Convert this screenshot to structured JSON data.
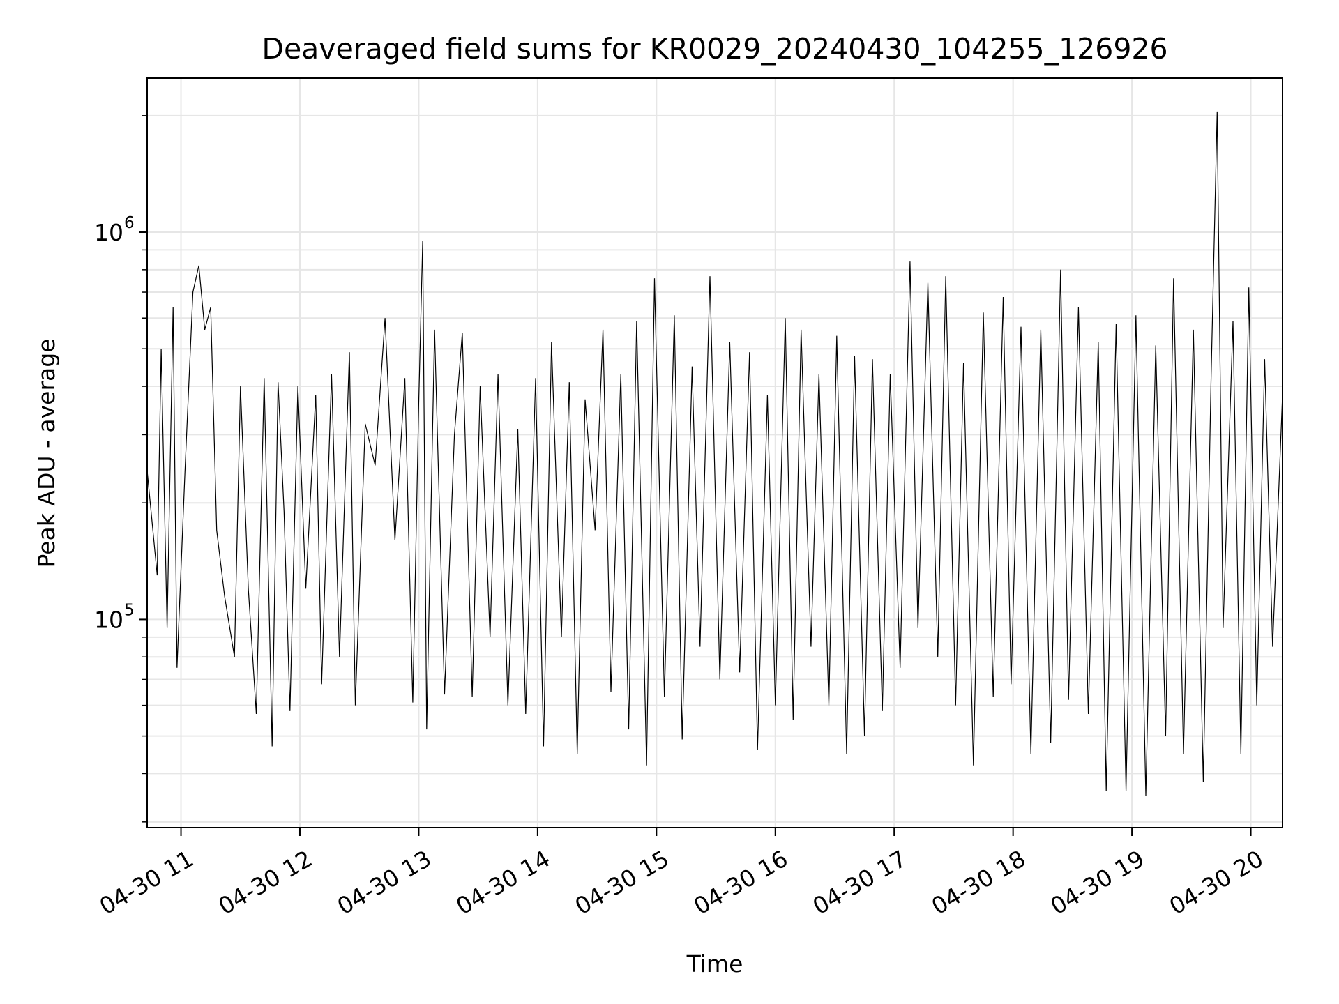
{
  "chart_data": {
    "type": "line",
    "title": "Deaveraged field sums for KR0029_20240430_104255_126926",
    "xlabel": "Time",
    "ylabel": "Peak ADU - average",
    "xlim": [
      "2024-04-30T10:42:55",
      "2024-04-30T20:16:00"
    ],
    "ylim": [
      29000,
      2500000
    ],
    "yscale": "log",
    "grid": true,
    "x_ticks": [
      {
        "t": "2024-04-30T11:00",
        "label": "04-30 11"
      },
      {
        "t": "2024-04-30T12:00",
        "label": "04-30 12"
      },
      {
        "t": "2024-04-30T13:00",
        "label": "04-30 13"
      },
      {
        "t": "2024-04-30T14:00",
        "label": "04-30 14"
      },
      {
        "t": "2024-04-30T15:00",
        "label": "04-30 15"
      },
      {
        "t": "2024-04-30T16:00",
        "label": "04-30 16"
      },
      {
        "t": "2024-04-30T17:00",
        "label": "04-30 17"
      },
      {
        "t": "2024-04-30T18:00",
        "label": "04-30 18"
      },
      {
        "t": "2024-04-30T19:00",
        "label": "04-30 19"
      },
      {
        "t": "2024-04-30T20:00",
        "label": "04-30 20"
      }
    ],
    "y_major_ticks": [
      {
        "value": 100000,
        "base": "10",
        "exp": "5"
      },
      {
        "value": 1000000,
        "base": "10",
        "exp": "6"
      }
    ],
    "y_minor_ticks": [
      30000,
      40000,
      50000,
      60000,
      70000,
      80000,
      90000,
      200000,
      300000,
      400000,
      500000,
      600000,
      700000,
      800000,
      900000,
      2000000
    ],
    "series": [
      {
        "color": "#000000",
        "points": [
          [
            "2024-04-30T10:43",
            240000
          ],
          [
            "2024-04-30T10:48",
            130000
          ],
          [
            "2024-04-30T10:50",
            500000
          ],
          [
            "2024-04-30T10:53",
            95000
          ],
          [
            "2024-04-30T10:56",
            640000
          ],
          [
            "2024-04-30T10:58",
            75000
          ],
          [
            "2024-04-30T11:02",
            240000
          ],
          [
            "2024-04-30T11:06",
            700000
          ],
          [
            "2024-04-30T11:09",
            820000
          ],
          [
            "2024-04-30T11:12",
            560000
          ],
          [
            "2024-04-30T11:15",
            640000
          ],
          [
            "2024-04-30T11:18",
            170000
          ],
          [
            "2024-04-30T11:22",
            115000
          ],
          [
            "2024-04-30T11:27",
            80000
          ],
          [
            "2024-04-30T11:30",
            400000
          ],
          [
            "2024-04-30T11:34",
            120000
          ],
          [
            "2024-04-30T11:38",
            57000
          ],
          [
            "2024-04-30T11:42",
            420000
          ],
          [
            "2024-04-30T11:46",
            47000
          ],
          [
            "2024-04-30T11:49",
            410000
          ],
          [
            "2024-04-30T11:52",
            190000
          ],
          [
            "2024-04-30T11:55",
            58000
          ],
          [
            "2024-04-30T11:59",
            400000
          ],
          [
            "2024-04-30T12:03",
            120000
          ],
          [
            "2024-04-30T12:08",
            380000
          ],
          [
            "2024-04-30T12:11",
            68000
          ],
          [
            "2024-04-30T12:16",
            430000
          ],
          [
            "2024-04-30T12:20",
            80000
          ],
          [
            "2024-04-30T12:25",
            490000
          ],
          [
            "2024-04-30T12:28",
            60000
          ],
          [
            "2024-04-30T12:33",
            320000
          ],
          [
            "2024-04-30T12:38",
            250000
          ],
          [
            "2024-04-30T12:43",
            600000
          ],
          [
            "2024-04-30T12:48",
            160000
          ],
          [
            "2024-04-30T12:53",
            420000
          ],
          [
            "2024-04-30T12:57",
            61000
          ],
          [
            "2024-04-30T13:00",
            360000
          ],
          [
            "2024-04-30T13:02",
            950000
          ],
          [
            "2024-04-30T13:04",
            52000
          ],
          [
            "2024-04-30T13:08",
            560000
          ],
          [
            "2024-04-30T13:13",
            64000
          ],
          [
            "2024-04-30T13:18",
            300000
          ],
          [
            "2024-04-30T13:22",
            550000
          ],
          [
            "2024-04-30T13:27",
            63000
          ],
          [
            "2024-04-30T13:31",
            400000
          ],
          [
            "2024-04-30T13:36",
            90000
          ],
          [
            "2024-04-30T13:40",
            430000
          ],
          [
            "2024-04-30T13:45",
            60000
          ],
          [
            "2024-04-30T13:50",
            310000
          ],
          [
            "2024-04-30T13:54",
            57000
          ],
          [
            "2024-04-30T13:59",
            420000
          ],
          [
            "2024-04-30T14:03",
            47000
          ],
          [
            "2024-04-30T14:07",
            520000
          ],
          [
            "2024-04-30T14:12",
            90000
          ],
          [
            "2024-04-30T14:16",
            410000
          ],
          [
            "2024-04-30T14:20",
            45000
          ],
          [
            "2024-04-30T14:24",
            370000
          ],
          [
            "2024-04-30T14:29",
            170000
          ],
          [
            "2024-04-30T14:33",
            560000
          ],
          [
            "2024-04-30T14:37",
            65000
          ],
          [
            "2024-04-30T14:42",
            430000
          ],
          [
            "2024-04-30T14:46",
            52000
          ],
          [
            "2024-04-30T14:50",
            590000
          ],
          [
            "2024-04-30T14:55",
            42000
          ],
          [
            "2024-04-30T14:59",
            760000
          ],
          [
            "2024-04-30T15:04",
            63000
          ],
          [
            "2024-04-30T15:09",
            610000
          ],
          [
            "2024-04-30T15:13",
            49000
          ],
          [
            "2024-04-30T15:18",
            450000
          ],
          [
            "2024-04-30T15:22",
            85000
          ],
          [
            "2024-04-30T15:27",
            770000
          ],
          [
            "2024-04-30T15:32",
            70000
          ],
          [
            "2024-04-30T15:37",
            520000
          ],
          [
            "2024-04-30T15:42",
            73000
          ],
          [
            "2024-04-30T15:47",
            490000
          ],
          [
            "2024-04-30T15:51",
            46000
          ],
          [
            "2024-04-30T15:56",
            380000
          ],
          [
            "2024-04-30T16:00",
            60000
          ],
          [
            "2024-04-30T16:05",
            600000
          ],
          [
            "2024-04-30T16:09",
            55000
          ],
          [
            "2024-04-30T16:13",
            560000
          ],
          [
            "2024-04-30T16:18",
            85000
          ],
          [
            "2024-04-30T16:22",
            430000
          ],
          [
            "2024-04-30T16:27",
            60000
          ],
          [
            "2024-04-30T16:31",
            540000
          ],
          [
            "2024-04-30T16:36",
            45000
          ],
          [
            "2024-04-30T16:40",
            480000
          ],
          [
            "2024-04-30T16:45",
            50000
          ],
          [
            "2024-04-30T16:49",
            470000
          ],
          [
            "2024-04-30T16:54",
            58000
          ],
          [
            "2024-04-30T16:58",
            430000
          ],
          [
            "2024-04-30T17:03",
            75000
          ],
          [
            "2024-04-30T17:08",
            840000
          ],
          [
            "2024-04-30T17:12",
            95000
          ],
          [
            "2024-04-30T17:17",
            740000
          ],
          [
            "2024-04-30T17:22",
            80000
          ],
          [
            "2024-04-30T17:26",
            770000
          ],
          [
            "2024-04-30T17:31",
            60000
          ],
          [
            "2024-04-30T17:35",
            460000
          ],
          [
            "2024-04-30T17:40",
            42000
          ],
          [
            "2024-04-30T17:45",
            620000
          ],
          [
            "2024-04-30T17:50",
            63000
          ],
          [
            "2024-04-30T17:55",
            680000
          ],
          [
            "2024-04-30T17:59",
            68000
          ],
          [
            "2024-04-30T18:04",
            570000
          ],
          [
            "2024-04-30T18:09",
            45000
          ],
          [
            "2024-04-30T18:14",
            560000
          ],
          [
            "2024-04-30T18:19",
            48000
          ],
          [
            "2024-04-30T18:24",
            800000
          ],
          [
            "2024-04-30T18:28",
            62000
          ],
          [
            "2024-04-30T18:33",
            640000
          ],
          [
            "2024-04-30T18:38",
            57000
          ],
          [
            "2024-04-30T18:43",
            520000
          ],
          [
            "2024-04-30T18:47",
            36000
          ],
          [
            "2024-04-30T18:52",
            580000
          ],
          [
            "2024-04-30T18:57",
            36000
          ],
          [
            "2024-04-30T19:02",
            610000
          ],
          [
            "2024-04-30T19:07",
            35000
          ],
          [
            "2024-04-30T19:12",
            510000
          ],
          [
            "2024-04-30T19:17",
            50000
          ],
          [
            "2024-04-30T19:21",
            760000
          ],
          [
            "2024-04-30T19:26",
            45000
          ],
          [
            "2024-04-30T19:31",
            560000
          ],
          [
            "2024-04-30T19:36",
            38000
          ],
          [
            "2024-04-30T19:40",
            430000
          ],
          [
            "2024-04-30T19:43",
            2050000
          ],
          [
            "2024-04-30T19:46",
            95000
          ],
          [
            "2024-04-30T19:51",
            590000
          ],
          [
            "2024-04-30T19:55",
            45000
          ],
          [
            "2024-04-30T19:59",
            720000
          ],
          [
            "2024-04-30T20:03",
            60000
          ],
          [
            "2024-04-30T20:07",
            470000
          ],
          [
            "2024-04-30T20:11",
            85000
          ],
          [
            "2024-04-30T20:16",
            380000
          ]
        ]
      }
    ]
  }
}
